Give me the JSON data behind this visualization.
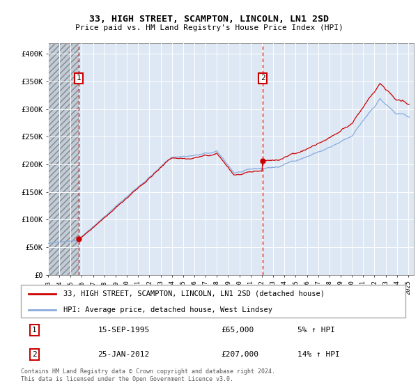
{
  "title": "33, HIGH STREET, SCAMPTON, LINCOLN, LN1 2SD",
  "subtitle": "Price paid vs. HM Land Registry's House Price Index (HPI)",
  "ylim": [
    0,
    420000
  ],
  "yticks": [
    0,
    50000,
    100000,
    150000,
    200000,
    250000,
    300000,
    350000,
    400000
  ],
  "ytick_labels": [
    "£0",
    "£50K",
    "£100K",
    "£150K",
    "£200K",
    "£250K",
    "£300K",
    "£350K",
    "£400K"
  ],
  "xlim_start": 1993.0,
  "xlim_end": 2025.5,
  "hatch_end": 1995.72,
  "line1_label": "33, HIGH STREET, SCAMPTON, LINCOLN, LN1 2SD (detached house)",
  "line2_label": "HPI: Average price, detached house, West Lindsey",
  "line1_color": "#cc0000",
  "line2_color": "#88aadd",
  "point1_x": 1995.72,
  "point1_y": 65000,
  "point2_x": 2012.07,
  "point2_y": 207000,
  "point1_date": "15-SEP-1995",
  "point1_price": "£65,000",
  "point1_hpi": "5% ↑ HPI",
  "point2_date": "25-JAN-2012",
  "point2_price": "£207,000",
  "point2_hpi": "14% ↑ HPI",
  "background_color": "#dde8f4",
  "hatch_color": "#c0ccd8",
  "grid_color": "#ffffff",
  "copyright_text": "Contains HM Land Registry data © Crown copyright and database right 2024.\nThis data is licensed under the Open Government Licence v3.0."
}
